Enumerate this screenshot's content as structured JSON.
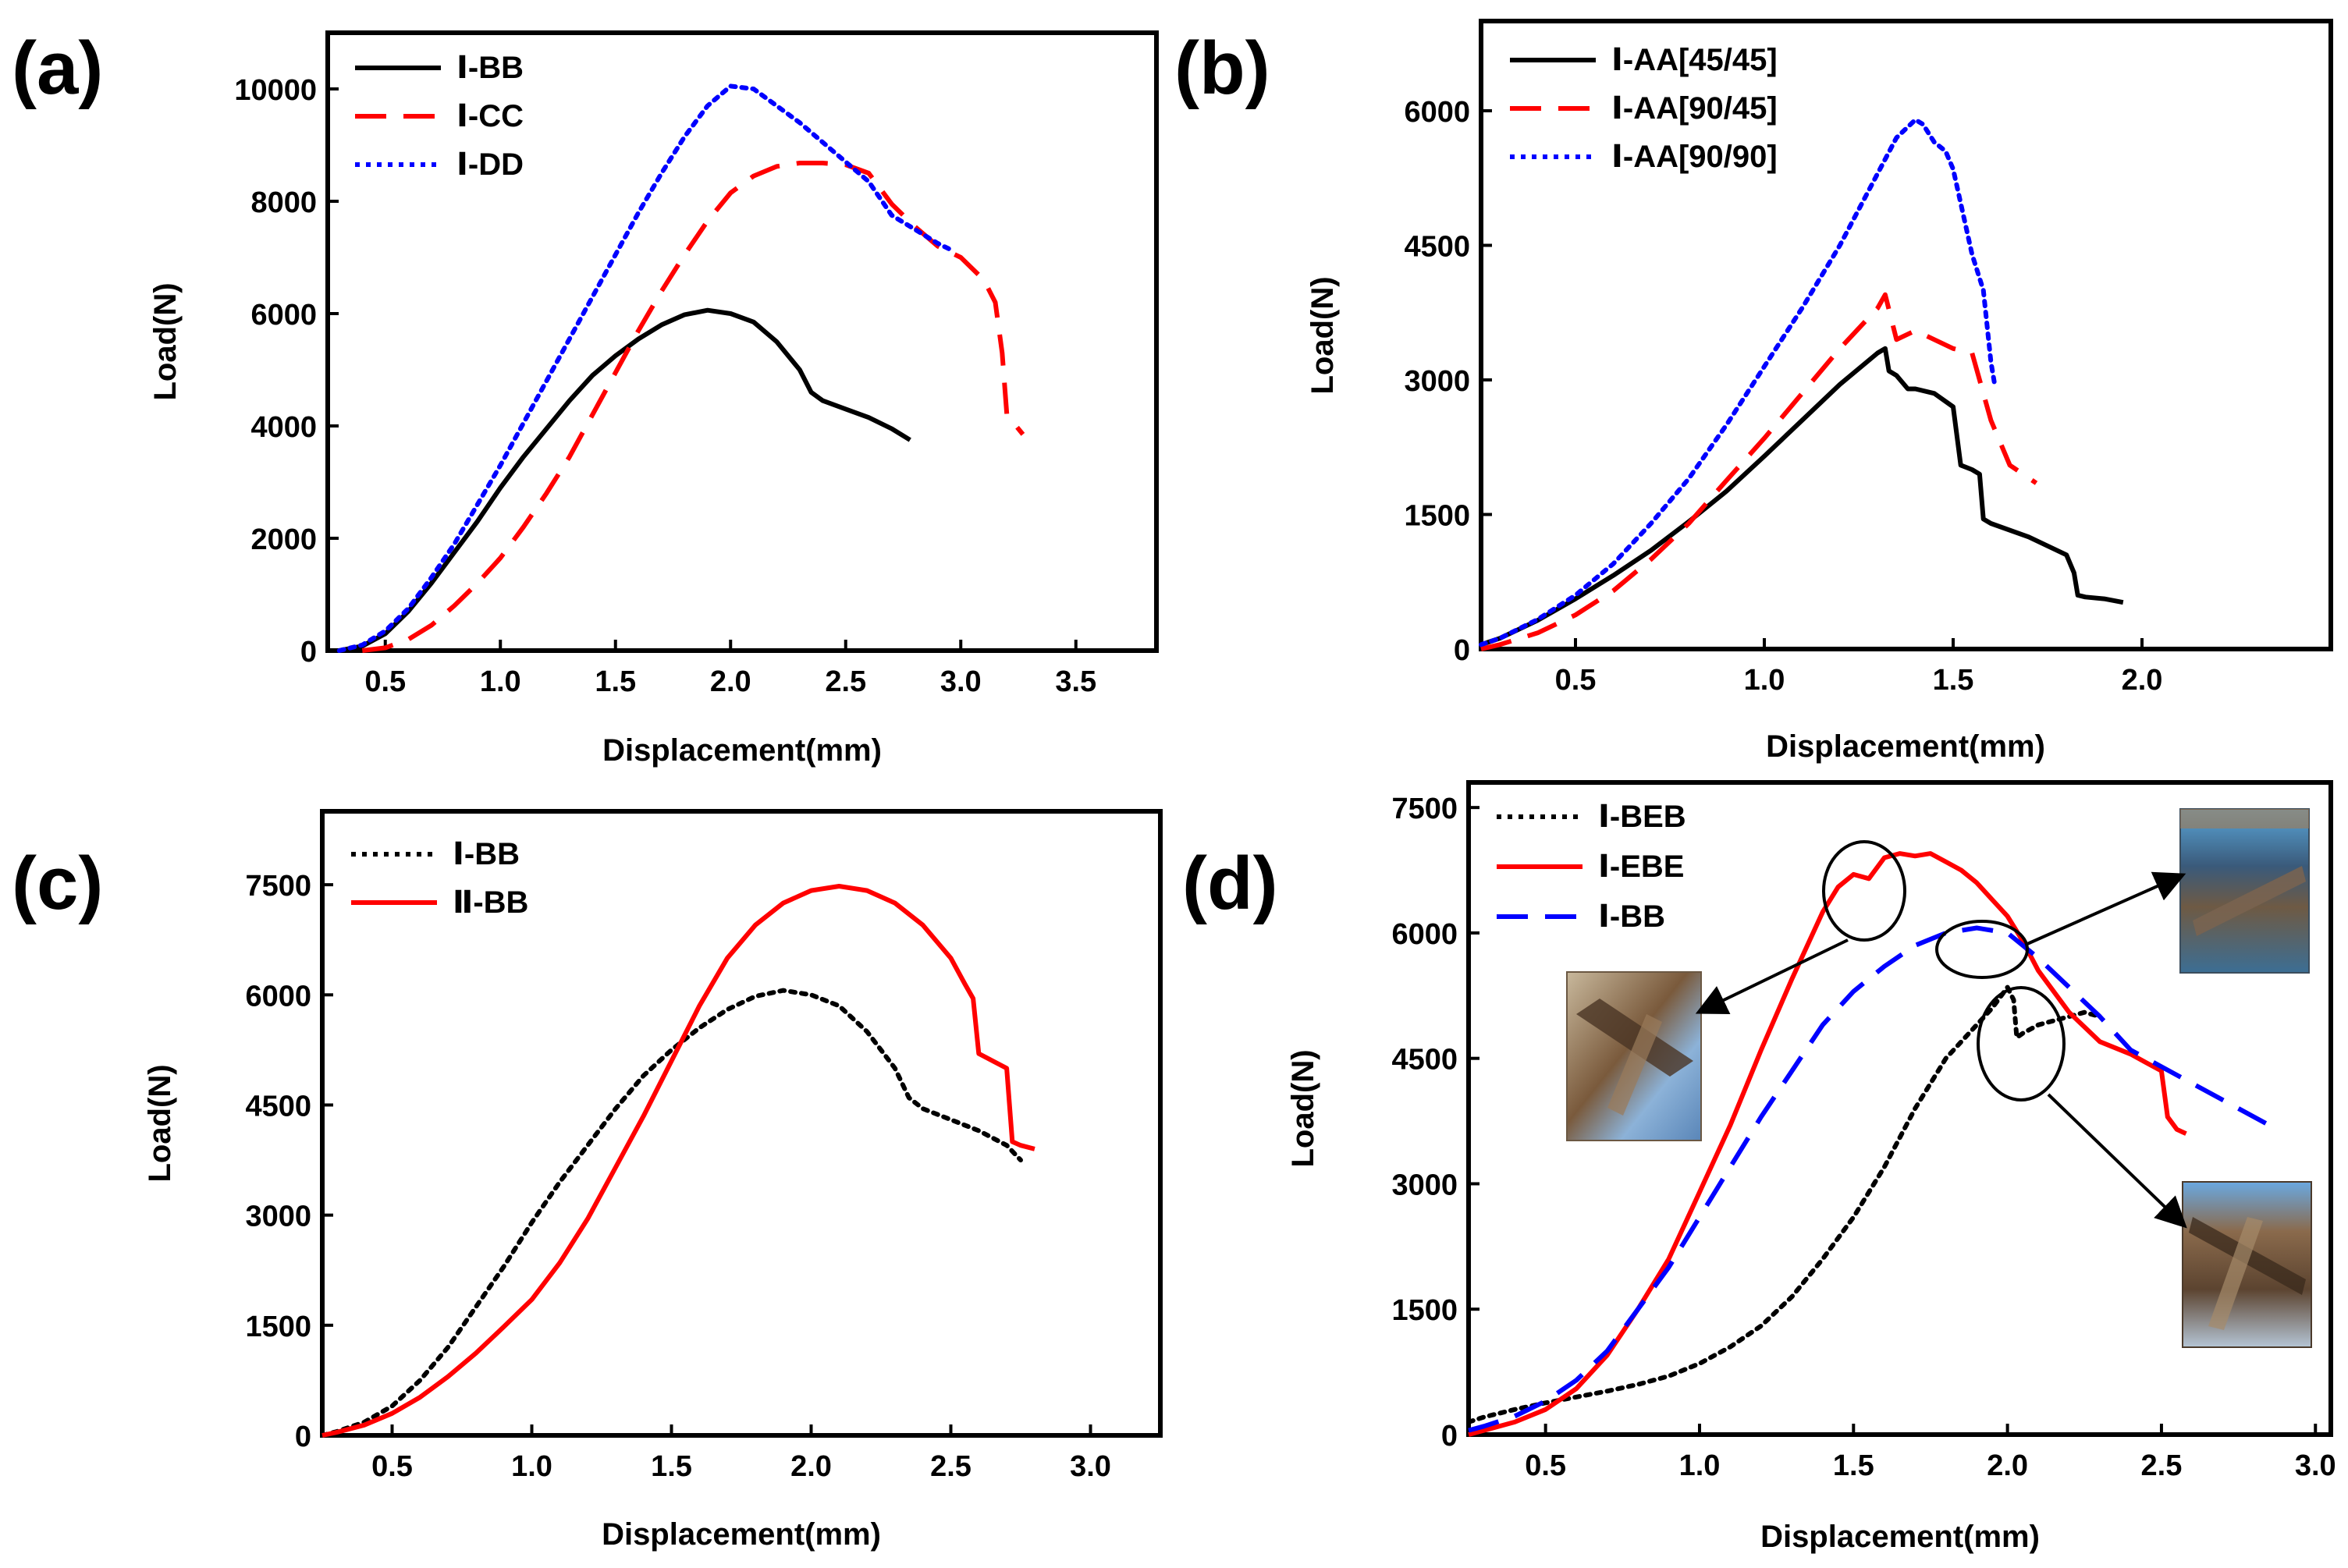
{
  "figure": {
    "panels": [
      "(a)",
      "(b)",
      "(c)",
      "(d)"
    ]
  },
  "chart_data": [
    {
      "id": "a",
      "type": "line",
      "label": "(a)",
      "xlabel": "Displacement(mm)",
      "ylabel": "Load(N)",
      "xlim": [
        0.25,
        3.85
      ],
      "ylim": [
        0,
        11000
      ],
      "xticks": [
        0.5,
        1.0,
        1.5,
        2.0,
        2.5,
        3.0,
        3.5
      ],
      "xtick_labels": [
        "0.5",
        "1.0",
        "1.5",
        "2.0",
        "2.5",
        "3.0",
        "3.5"
      ],
      "yticks": [
        0,
        2000,
        4000,
        6000,
        8000,
        10000
      ],
      "ytick_labels": [
        "0",
        "2000",
        "4000",
        "6000",
        "8000",
        "10000"
      ],
      "legend_position": "top-left",
      "series": [
        {
          "name": "Ⅰ-BB",
          "color": "#000000",
          "dash": "solid",
          "x": [
            0.3,
            0.4,
            0.5,
            0.6,
            0.7,
            0.8,
            0.9,
            1.0,
            1.1,
            1.2,
            1.3,
            1.4,
            1.5,
            1.6,
            1.7,
            1.8,
            1.9,
            2.0,
            2.1,
            2.2,
            2.3,
            2.35,
            2.4,
            2.5,
            2.6,
            2.7,
            2.78
          ],
          "y": [
            0,
            80,
            300,
            700,
            1200,
            1750,
            2300,
            2900,
            3450,
            3950,
            4450,
            4900,
            5250,
            5550,
            5800,
            5980,
            6060,
            6000,
            5850,
            5500,
            5000,
            4600,
            4450,
            4300,
            4150,
            3950,
            3750
          ]
        },
        {
          "name": "Ⅰ-CC",
          "color": "#ff0000",
          "dash": "long",
          "x": [
            0.4,
            0.5,
            0.6,
            0.7,
            0.8,
            0.9,
            1.0,
            1.1,
            1.2,
            1.3,
            1.4,
            1.5,
            1.6,
            1.7,
            1.8,
            1.9,
            2.0,
            2.1,
            2.2,
            2.3,
            2.4,
            2.5,
            2.6,
            2.7,
            2.8,
            2.9,
            3.0,
            3.1,
            3.15,
            3.18,
            3.2,
            3.27
          ],
          "y": [
            0,
            50,
            200,
            450,
            800,
            1200,
            1650,
            2200,
            2800,
            3450,
            4200,
            4950,
            5700,
            6400,
            7050,
            7650,
            8150,
            8450,
            8620,
            8680,
            8680,
            8650,
            8500,
            7950,
            7550,
            7200,
            7000,
            6600,
            6200,
            5300,
            4200,
            3850
          ]
        },
        {
          "name": "Ⅰ-DD",
          "color": "#0000ff",
          "dash": "dot",
          "x": [
            0.3,
            0.4,
            0.5,
            0.6,
            0.7,
            0.8,
            0.9,
            1.0,
            1.1,
            1.2,
            1.3,
            1.4,
            1.5,
            1.6,
            1.7,
            1.8,
            1.9,
            2.0,
            2.1,
            2.2,
            2.3,
            2.4,
            2.5,
            2.6,
            2.7,
            2.8,
            2.9,
            2.95
          ],
          "y": [
            0,
            100,
            350,
            750,
            1300,
            1900,
            2600,
            3300,
            4050,
            4800,
            5550,
            6300,
            7050,
            7800,
            8500,
            9150,
            9700,
            10050,
            10000,
            9700,
            9400,
            9050,
            8700,
            8350,
            7750,
            7500,
            7250,
            7150
          ]
        }
      ]
    },
    {
      "id": "b",
      "type": "line",
      "label": "(b)",
      "xlabel": "Displacement(mm)",
      "ylabel": "Load(N)",
      "xlim": [
        0.25,
        2.5
      ],
      "ylim": [
        0,
        7000
      ],
      "xticks": [
        0.5,
        1.0,
        1.5,
        2.0
      ],
      "xtick_labels": [
        "0.5",
        "1.0",
        "1.5",
        "2.0"
      ],
      "yticks": [
        0,
        1500,
        3000,
        4500,
        6000
      ],
      "ytick_labels": [
        "0",
        "1500",
        "3000",
        "4500",
        "6000"
      ],
      "legend_position": "top-left",
      "series": [
        {
          "name": "Ⅰ-AA[45/45]",
          "color": "#000000",
          "dash": "solid",
          "x": [
            0.25,
            0.3,
            0.4,
            0.5,
            0.6,
            0.7,
            0.8,
            0.9,
            1.0,
            1.1,
            1.2,
            1.3,
            1.32,
            1.33,
            1.35,
            1.38,
            1.4,
            1.45,
            1.5,
            1.52,
            1.55,
            1.57,
            1.58,
            1.6,
            1.7,
            1.8,
            1.82,
            1.83,
            1.85,
            1.9,
            1.95
          ],
          "y": [
            50,
            120,
            320,
            560,
            820,
            1100,
            1420,
            1760,
            2150,
            2550,
            2950,
            3300,
            3350,
            3100,
            3050,
            2900,
            2900,
            2850,
            2700,
            2050,
            2000,
            1950,
            1450,
            1400,
            1250,
            1050,
            850,
            600,
            580,
            560,
            520
          ]
        },
        {
          "name": "Ⅰ-AA[90/45]",
          "color": "#ff0000",
          "dash": "long",
          "x": [
            0.25,
            0.3,
            0.4,
            0.5,
            0.6,
            0.7,
            0.8,
            0.9,
            1.0,
            1.1,
            1.2,
            1.3,
            1.32,
            1.35,
            1.4,
            1.45,
            1.5,
            1.55,
            1.6,
            1.65,
            1.72
          ],
          "y": [
            0,
            50,
            180,
            380,
            650,
            1000,
            1400,
            1880,
            2350,
            2850,
            3350,
            3800,
            3950,
            3450,
            3550,
            3450,
            3350,
            3300,
            2550,
            2050,
            1850
          ]
        },
        {
          "name": "Ⅰ-AA[90/90]",
          "color": "#0000ff",
          "dash": "dot",
          "x": [
            0.25,
            0.3,
            0.4,
            0.5,
            0.6,
            0.7,
            0.8,
            0.9,
            1.0,
            1.1,
            1.2,
            1.3,
            1.35,
            1.4,
            1.42,
            1.45,
            1.48,
            1.5,
            1.55,
            1.58,
            1.6,
            1.61
          ],
          "y": [
            50,
            120,
            330,
            600,
            950,
            1400,
            1900,
            2500,
            3150,
            3800,
            4500,
            5300,
            5700,
            5900,
            5850,
            5650,
            5550,
            5350,
            4400,
            4000,
            3200,
            2950
          ]
        }
      ]
    },
    {
      "id": "c",
      "type": "line",
      "label": "(c)",
      "xlabel": "Displacement(mm)",
      "ylabel": "Load(N)",
      "xlim": [
        0.25,
        3.25
      ],
      "ylim": [
        0,
        8500
      ],
      "xticks": [
        0.5,
        1.0,
        1.5,
        2.0,
        2.5,
        3.0
      ],
      "xtick_labels": [
        "0.5",
        "1.0",
        "1.5",
        "2.0",
        "2.5",
        "3.0"
      ],
      "yticks": [
        0,
        1500,
        3000,
        4500,
        6000,
        7500
      ],
      "ytick_labels": [
        "0",
        "1500",
        "3000",
        "4500",
        "6000",
        "7500"
      ],
      "legend_position": "top-left",
      "series": [
        {
          "name": "Ⅰ-BB",
          "color": "#000000",
          "dash": "dot",
          "x": [
            0.25,
            0.3,
            0.4,
            0.5,
            0.6,
            0.7,
            0.8,
            0.9,
            1.0,
            1.1,
            1.2,
            1.3,
            1.4,
            1.5,
            1.6,
            1.7,
            1.8,
            1.9,
            2.0,
            2.1,
            2.2,
            2.3,
            2.35,
            2.4,
            2.5,
            2.6,
            2.7,
            2.75
          ],
          "y": [
            0,
            50,
            180,
            400,
            750,
            1200,
            1750,
            2300,
            2900,
            3450,
            3950,
            4450,
            4900,
            5250,
            5550,
            5800,
            5980,
            6060,
            6000,
            5850,
            5500,
            5000,
            4600,
            4450,
            4300,
            4150,
            3950,
            3750
          ]
        },
        {
          "name": "Ⅱ-BB",
          "color": "#ff0000",
          "dash": "solid",
          "x": [
            0.25,
            0.3,
            0.4,
            0.5,
            0.6,
            0.7,
            0.8,
            0.9,
            1.0,
            1.1,
            1.2,
            1.3,
            1.4,
            1.5,
            1.6,
            1.7,
            1.8,
            1.9,
            2.0,
            2.1,
            2.2,
            2.3,
            2.4,
            2.5,
            2.55,
            2.58,
            2.6,
            2.7,
            2.72,
            2.75,
            2.8
          ],
          "y": [
            0,
            40,
            140,
            300,
            520,
            800,
            1120,
            1480,
            1850,
            2350,
            2950,
            3650,
            4350,
            5100,
            5850,
            6500,
            6950,
            7250,
            7420,
            7480,
            7420,
            7250,
            6950,
            6500,
            6150,
            5950,
            5200,
            5000,
            4000,
            3950,
            3900
          ]
        }
      ]
    },
    {
      "id": "d",
      "type": "line",
      "label": "(d)",
      "xlabel": "Displacement(mm)",
      "ylabel": "Load(N)",
      "xlim": [
        0.25,
        3.05
      ],
      "ylim": [
        0,
        7800
      ],
      "xticks": [
        0.5,
        1.0,
        1.5,
        2.0,
        2.5,
        3.0
      ],
      "xtick_labels": [
        "0.5",
        "1.0",
        "1.5",
        "2.0",
        "2.5",
        "3.0"
      ],
      "yticks": [
        0,
        1500,
        3000,
        4500,
        6000,
        7500
      ],
      "ytick_labels": [
        "0",
        "1500",
        "3000",
        "4500",
        "6000",
        "7500"
      ],
      "legend_position": "top-left",
      "series": [
        {
          "name": "Ⅰ-BEB",
          "color": "#000000",
          "dash": "dot",
          "x": [
            0.25,
            0.3,
            0.4,
            0.5,
            0.6,
            0.7,
            0.8,
            0.9,
            1.0,
            1.1,
            1.2,
            1.3,
            1.4,
            1.5,
            1.6,
            1.7,
            1.8,
            1.9,
            1.95,
            2.0,
            2.02,
            2.03,
            2.05,
            2.1,
            2.2,
            2.25,
            2.3
          ],
          "y": [
            150,
            210,
            300,
            380,
            450,
            520,
            600,
            700,
            850,
            1050,
            1300,
            1650,
            2100,
            2600,
            3200,
            3900,
            4500,
            4900,
            5100,
            5350,
            5200,
            4750,
            4800,
            4900,
            5000,
            5050,
            5000
          ]
        },
        {
          "name": "Ⅰ-EBE",
          "color": "#ff0000",
          "dash": "solid",
          "x": [
            0.25,
            0.3,
            0.4,
            0.5,
            0.6,
            0.7,
            0.8,
            0.9,
            1.0,
            1.1,
            1.2,
            1.3,
            1.4,
            1.45,
            1.5,
            1.55,
            1.6,
            1.65,
            1.7,
            1.75,
            1.8,
            1.85,
            1.9,
            1.95,
            2.0,
            2.05,
            2.1,
            2.2,
            2.3,
            2.4,
            2.45,
            2.5,
            2.52,
            2.55,
            2.58
          ],
          "y": [
            0,
            50,
            150,
            300,
            550,
            950,
            1500,
            2100,
            2900,
            3700,
            4600,
            5450,
            6250,
            6550,
            6700,
            6650,
            6900,
            6950,
            6920,
            6950,
            6850,
            6750,
            6600,
            6400,
            6200,
            5900,
            5550,
            5050,
            4700,
            4550,
            4450,
            4350,
            3800,
            3650,
            3600
          ]
        },
        {
          "name": "Ⅰ-BB",
          "color": "#0000ff",
          "dash": "long",
          "x": [
            0.25,
            0.3,
            0.4,
            0.5,
            0.6,
            0.7,
            0.8,
            0.9,
            1.0,
            1.1,
            1.2,
            1.3,
            1.4,
            1.5,
            1.6,
            1.7,
            1.8,
            1.9,
            2.0,
            2.1,
            2.2,
            2.3,
            2.4,
            2.5,
            2.6,
            2.7,
            2.85
          ],
          "y": [
            50,
            100,
            220,
            400,
            650,
            1000,
            1500,
            2000,
            2600,
            3200,
            3800,
            4350,
            4900,
            5300,
            5600,
            5850,
            6000,
            6060,
            6000,
            5700,
            5350,
            5000,
            4600,
            4400,
            4200,
            4000,
            3700
          ]
        }
      ]
    }
  ]
}
